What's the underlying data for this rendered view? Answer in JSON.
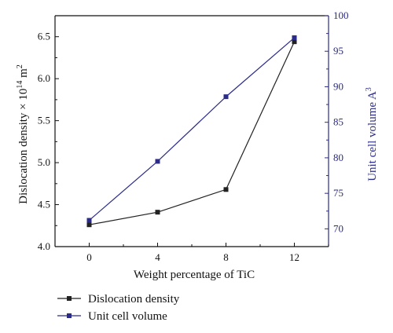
{
  "chart_data": {
    "type": "line",
    "x": [
      0,
      4,
      8,
      12
    ],
    "x_ticks": [
      "0",
      "4",
      "8",
      "12"
    ],
    "xlabel": "Weight percentage of TiC",
    "xlim": [
      -2,
      14
    ],
    "y_left": {
      "label_main": "Dislocation density × 10",
      "label_exp": "14",
      "label_unit": " m",
      "label_unit_exp": "2",
      "ylim": [
        4.0,
        6.75
      ],
      "ticks": [
        "4.0",
        "4.5",
        "5.0",
        "5.5",
        "6.0",
        "6.5"
      ],
      "color": "#111111"
    },
    "y_right": {
      "label_main": "Unit cell volume A",
      "label_exp": "3",
      "ylim": [
        67.5,
        100
      ],
      "ticks": [
        "70",
        "75",
        "80",
        "85",
        "90",
        "95",
        "100"
      ],
      "color": "#2b2b8a"
    },
    "series": [
      {
        "name": "Dislocation density",
        "axis": "left",
        "color": "#222222",
        "values": [
          4.26,
          4.41,
          4.68,
          6.44
        ]
      },
      {
        "name": "Unit cell volume",
        "axis": "right",
        "color": "#2b2b8a",
        "values": [
          71.2,
          79.5,
          88.6,
          96.9
        ]
      }
    ],
    "legend_position": "bottom-left",
    "grid": false
  }
}
